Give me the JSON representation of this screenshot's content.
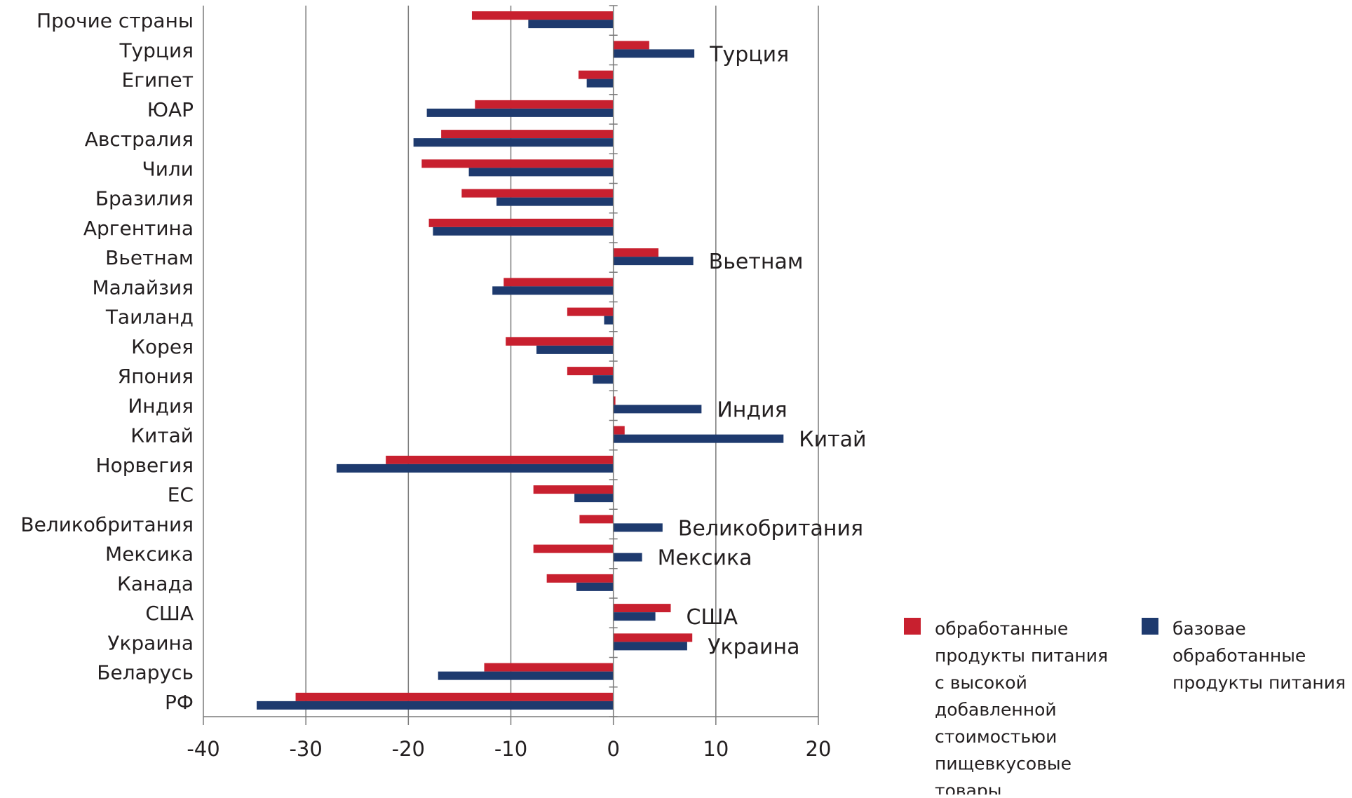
{
  "chart_data": {
    "type": "bar",
    "orientation": "horizontal",
    "title": "",
    "xlabel": "",
    "ylabel": "",
    "xlim": [
      -40,
      20
    ],
    "x_ticks": [
      "-40",
      "-30",
      "-20",
      "-10",
      "0",
      "10",
      "20"
    ],
    "grid": "vertical",
    "categories": [
      "Прочие страны",
      "Турция",
      "Египет",
      "ЮАР",
      "Австралия",
      "Чили",
      "Бразилия",
      "Аргентина",
      "Вьетнам",
      "Малайзия",
      "Таиланд",
      "Корея",
      "Япония",
      "Индия",
      "Китай",
      "Норвегия",
      "ЕС",
      "Великобритания",
      "Мексика",
      "Канада",
      "США",
      "Украина",
      "Беларусь",
      "РФ"
    ],
    "series": [
      {
        "name": "обработанные продукты питания с высокой добавленной стоимостьюи пищевкусовые товары",
        "color": "#c8202f",
        "values": [
          -13.8,
          3.5,
          -3.4,
          -13.5,
          -16.8,
          -18.7,
          -14.8,
          -18.0,
          4.4,
          -10.7,
          -4.5,
          -10.5,
          -4.5,
          0.2,
          1.1,
          -22.2,
          -7.8,
          -3.3,
          -7.8,
          -6.5,
          5.6,
          7.7,
          -12.6,
          -31.0
        ]
      },
      {
        "name": "базовае обработанные продукты питания",
        "color": "#1e3a6e",
        "values": [
          -8.3,
          7.9,
          -2.6,
          -18.2,
          -19.5,
          -14.1,
          -11.4,
          -17.6,
          7.8,
          -11.8,
          -0.9,
          -7.5,
          -2.0,
          8.6,
          16.6,
          -27.0,
          -3.8,
          4.8,
          2.8,
          -3.6,
          4.1,
          7.2,
          -17.1,
          -34.8
        ]
      }
    ],
    "annotations": [
      {
        "text": "Турция",
        "category": "Турция"
      },
      {
        "text": "Вьетнам",
        "category": "Вьетнам"
      },
      {
        "text": "Индия",
        "category": "Индия"
      },
      {
        "text": "Китай",
        "category": "Китай"
      },
      {
        "text": "Великобритания",
        "category": "Великобритания"
      },
      {
        "text": "Мексика",
        "category": "Мексика"
      },
      {
        "text": "США",
        "category": "США"
      },
      {
        "text": "Украина",
        "category": "Украина"
      }
    ],
    "legend": {
      "placement": "bottom-right",
      "items": [
        {
          "lines": [
            "обработанные",
            "продукты питания",
            "с высокой",
            "добавленной",
            "стоимостьюи",
            "пищевкусовые",
            "товары"
          ],
          "color": "#c8202f",
          "icon": "red-square"
        },
        {
          "lines": [
            "базовае",
            "обработанные",
            "продукты питания"
          ],
          "color": "#1e3a6e",
          "icon": "navy-square"
        }
      ]
    }
  }
}
